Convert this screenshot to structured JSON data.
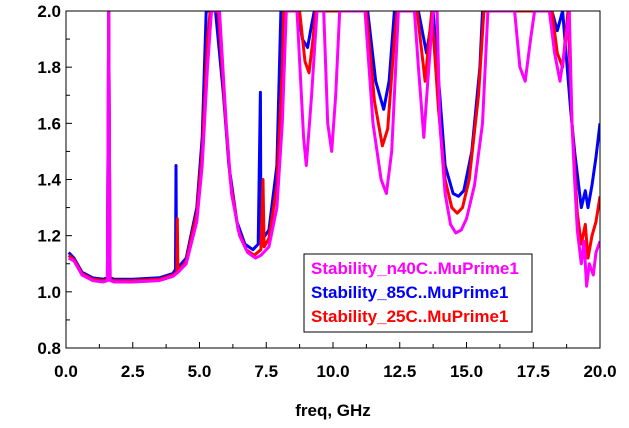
{
  "chart_data": {
    "type": "line",
    "title": "",
    "xlabel": "freq, GHz",
    "ylabel": "",
    "xlim": [
      0.0,
      20.0
    ],
    "ylim": [
      0.8,
      2.0
    ],
    "x_ticks": [
      "0.0",
      "2.5",
      "5.0",
      "7.5",
      "10.0",
      "12.5",
      "15.0",
      "17.5",
      "20.0"
    ],
    "y_ticks": [
      "0.8",
      "1.0",
      "1.2",
      "1.4",
      "1.6",
      "1.8",
      "2.0"
    ],
    "grid": false,
    "legend_position": "bottom-right",
    "series": [
      {
        "name": "Stability_n40C..MuPrime1",
        "color": "#ff00ff",
        "points": [
          [
            0.1,
            1.12
          ],
          [
            0.3,
            1.11
          ],
          [
            0.6,
            1.06
          ],
          [
            1.0,
            1.04
          ],
          [
            1.4,
            1.035
          ],
          [
            1.55,
            1.04
          ],
          [
            1.6,
            2.0
          ],
          [
            1.65,
            1.04
          ],
          [
            1.8,
            1.035
          ],
          [
            2.5,
            1.035
          ],
          [
            3.5,
            1.04
          ],
          [
            4.0,
            1.055
          ],
          [
            4.2,
            1.07
          ],
          [
            4.5,
            1.1
          ],
          [
            4.9,
            1.25
          ],
          [
            5.1,
            1.45
          ],
          [
            5.3,
            1.8
          ],
          [
            5.45,
            2.0
          ],
          [
            5.75,
            2.0
          ],
          [
            6.0,
            1.6
          ],
          [
            6.2,
            1.35
          ],
          [
            6.5,
            1.2
          ],
          [
            6.8,
            1.14
          ],
          [
            7.1,
            1.12
          ],
          [
            7.3,
            1.13
          ],
          [
            7.6,
            1.16
          ],
          [
            7.9,
            1.3
          ],
          [
            8.1,
            1.6
          ],
          [
            8.25,
            2.0
          ],
          [
            8.65,
            2.0
          ],
          [
            8.9,
            1.55
          ],
          [
            9.0,
            1.45
          ],
          [
            9.2,
            1.7
          ],
          [
            9.4,
            2.0
          ],
          [
            9.65,
            2.0
          ],
          [
            9.8,
            1.6
          ],
          [
            9.95,
            1.5
          ],
          [
            10.1,
            1.7
          ],
          [
            10.25,
            2.0
          ],
          [
            11.2,
            2.0
          ],
          [
            11.5,
            1.6
          ],
          [
            11.8,
            1.4
          ],
          [
            12.0,
            1.35
          ],
          [
            12.2,
            1.5
          ],
          [
            12.45,
            2.0
          ],
          [
            13.05,
            2.0
          ],
          [
            13.2,
            1.8
          ],
          [
            13.4,
            1.55
          ],
          [
            13.55,
            1.75
          ],
          [
            13.75,
            2.0
          ],
          [
            13.9,
            2.0
          ],
          [
            14.0,
            1.6
          ],
          [
            14.2,
            1.35
          ],
          [
            14.4,
            1.24
          ],
          [
            14.6,
            1.21
          ],
          [
            14.8,
            1.22
          ],
          [
            15.0,
            1.26
          ],
          [
            15.3,
            1.38
          ],
          [
            15.6,
            1.6
          ],
          [
            15.8,
            2.0
          ],
          [
            16.8,
            2.0
          ],
          [
            17.0,
            1.8
          ],
          [
            17.2,
            1.75
          ],
          [
            17.4,
            1.9
          ],
          [
            17.55,
            2.0
          ],
          [
            18.1,
            2.0
          ],
          [
            18.3,
            1.85
          ],
          [
            18.5,
            1.75
          ],
          [
            18.7,
            1.88
          ],
          [
            18.85,
            2.0
          ],
          [
            18.95,
            1.6
          ],
          [
            19.05,
            1.4
          ],
          [
            19.15,
            1.22
          ],
          [
            19.3,
            1.1
          ],
          [
            19.4,
            1.18
          ],
          [
            19.5,
            1.02
          ],
          [
            19.6,
            1.1
          ],
          [
            19.75,
            1.06
          ],
          [
            19.85,
            1.14
          ],
          [
            20.0,
            1.18
          ]
        ]
      },
      {
        "name": "Stability_85C..MuPrime1",
        "color": "#0000ff",
        "points": [
          [
            0.1,
            1.14
          ],
          [
            0.3,
            1.12
          ],
          [
            0.6,
            1.07
          ],
          [
            1.0,
            1.05
          ],
          [
            1.4,
            1.045
          ],
          [
            1.55,
            1.05
          ],
          [
            1.6,
            2.0
          ],
          [
            1.65,
            1.05
          ],
          [
            1.8,
            1.045
          ],
          [
            2.5,
            1.045
          ],
          [
            3.5,
            1.05
          ],
          [
            4.0,
            1.065
          ],
          [
            4.1,
            1.08
          ],
          [
            4.12,
            1.45
          ],
          [
            4.14,
            1.08
          ],
          [
            4.5,
            1.12
          ],
          [
            4.9,
            1.3
          ],
          [
            5.1,
            1.55
          ],
          [
            5.25,
            2.0
          ],
          [
            5.6,
            2.0
          ],
          [
            5.9,
            1.7
          ],
          [
            6.1,
            1.45
          ],
          [
            6.4,
            1.25
          ],
          [
            6.7,
            1.17
          ],
          [
            7.0,
            1.15
          ],
          [
            7.2,
            1.17
          ],
          [
            7.28,
            1.71
          ],
          [
            7.3,
            1.18
          ],
          [
            7.6,
            1.22
          ],
          [
            7.9,
            1.45
          ],
          [
            8.05,
            2.0
          ],
          [
            8.7,
            2.0
          ],
          [
            8.85,
            1.9
          ],
          [
            9.05,
            1.87
          ],
          [
            9.2,
            1.95
          ],
          [
            9.3,
            2.0
          ],
          [
            11.3,
            2.0
          ],
          [
            11.6,
            1.75
          ],
          [
            11.9,
            1.65
          ],
          [
            12.1,
            1.75
          ],
          [
            12.3,
            2.0
          ],
          [
            13.2,
            2.0
          ],
          [
            13.5,
            1.85
          ],
          [
            13.75,
            2.0
          ],
          [
            14.0,
            1.7
          ],
          [
            14.2,
            1.45
          ],
          [
            14.5,
            1.35
          ],
          [
            14.7,
            1.34
          ],
          [
            14.9,
            1.36
          ],
          [
            15.2,
            1.5
          ],
          [
            15.5,
            1.8
          ],
          [
            15.6,
            2.0
          ],
          [
            18.2,
            2.0
          ],
          [
            18.4,
            1.93
          ],
          [
            18.6,
            2.0
          ],
          [
            18.9,
            1.65
          ],
          [
            19.05,
            1.5
          ],
          [
            19.15,
            1.42
          ],
          [
            19.3,
            1.3
          ],
          [
            19.45,
            1.36
          ],
          [
            19.55,
            1.3
          ],
          [
            19.7,
            1.38
          ],
          [
            19.85,
            1.48
          ],
          [
            20.0,
            1.6
          ]
        ]
      },
      {
        "name": "Stability_25C..MuPrime1",
        "color": "#ff0000",
        "points": [
          [
            0.1,
            1.13
          ],
          [
            0.3,
            1.115
          ],
          [
            0.6,
            1.065
          ],
          [
            1.0,
            1.045
          ],
          [
            1.4,
            1.04
          ],
          [
            1.55,
            1.045
          ],
          [
            1.6,
            2.0
          ],
          [
            1.65,
            1.045
          ],
          [
            1.8,
            1.04
          ],
          [
            2.5,
            1.04
          ],
          [
            3.5,
            1.045
          ],
          [
            4.0,
            1.06
          ],
          [
            4.15,
            1.07
          ],
          [
            4.17,
            1.26
          ],
          [
            4.19,
            1.07
          ],
          [
            4.5,
            1.11
          ],
          [
            4.9,
            1.28
          ],
          [
            5.1,
            1.5
          ],
          [
            5.3,
            1.9
          ],
          [
            5.4,
            2.0
          ],
          [
            5.7,
            2.0
          ],
          [
            5.95,
            1.65
          ],
          [
            6.15,
            1.4
          ],
          [
            6.45,
            1.22
          ],
          [
            6.75,
            1.15
          ],
          [
            7.05,
            1.13
          ],
          [
            7.3,
            1.15
          ],
          [
            7.38,
            1.4
          ],
          [
            7.42,
            1.16
          ],
          [
            7.6,
            1.19
          ],
          [
            7.9,
            1.38
          ],
          [
            8.1,
            1.8
          ],
          [
            8.15,
            2.0
          ],
          [
            8.75,
            2.0
          ],
          [
            8.95,
            1.82
          ],
          [
            9.1,
            1.78
          ],
          [
            9.25,
            1.9
          ],
          [
            9.35,
            2.0
          ],
          [
            11.25,
            2.0
          ],
          [
            11.55,
            1.68
          ],
          [
            11.85,
            1.52
          ],
          [
            12.05,
            1.58
          ],
          [
            12.3,
            1.9
          ],
          [
            12.4,
            2.0
          ],
          [
            13.15,
            2.0
          ],
          [
            13.45,
            1.75
          ],
          [
            13.7,
            2.0
          ],
          [
            13.95,
            1.65
          ],
          [
            14.2,
            1.4
          ],
          [
            14.45,
            1.3
          ],
          [
            14.65,
            1.28
          ],
          [
            14.85,
            1.3
          ],
          [
            15.1,
            1.4
          ],
          [
            15.45,
            1.7
          ],
          [
            15.65,
            2.0
          ],
          [
            18.2,
            2.0
          ],
          [
            18.4,
            1.85
          ],
          [
            18.6,
            1.8
          ],
          [
            18.8,
            2.0
          ],
          [
            18.95,
            1.6
          ],
          [
            19.05,
            1.45
          ],
          [
            19.15,
            1.28
          ],
          [
            19.3,
            1.17
          ],
          [
            19.45,
            1.24
          ],
          [
            19.55,
            1.12
          ],
          [
            19.7,
            1.2
          ],
          [
            19.85,
            1.25
          ],
          [
            20.0,
            1.34
          ]
        ]
      }
    ]
  }
}
